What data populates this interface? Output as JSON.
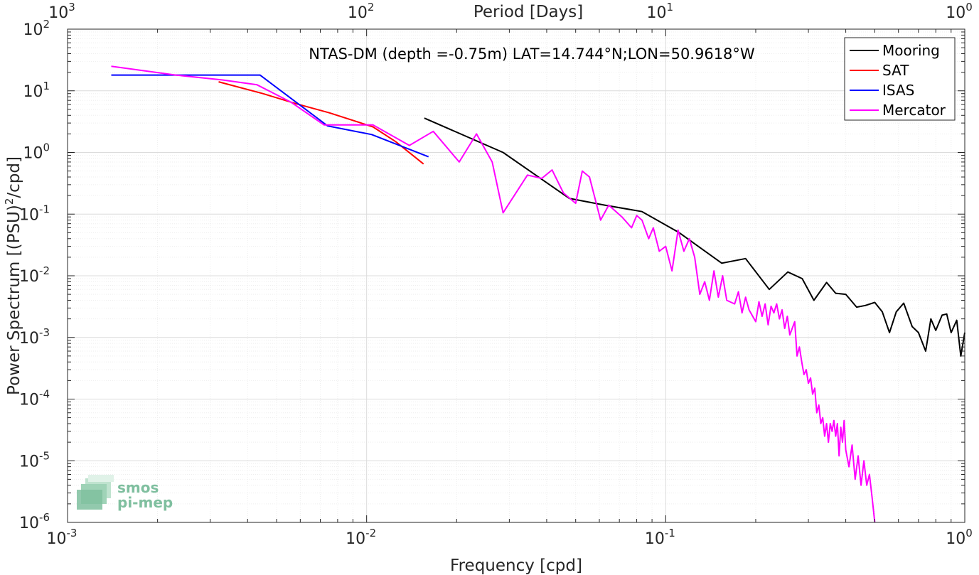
{
  "chart_data": {
    "type": "line",
    "title": "NTAS-DM (depth =-0.75m) LAT=14.744°N;LON=50.9618°W",
    "xlabel": "Frequency [cpd]",
    "ylabel": "Power Spectrum [(PSU)",
    "ylabel_sup": "2",
    "ylabel_tail": "/cpd]",
    "x2label": "Period [Days]",
    "xscale": "log",
    "yscale": "log",
    "xlim": [
      0.001,
      1
    ],
    "ylim": [
      1e-06,
      100
    ],
    "grid": true,
    "legend_position": "top-right",
    "x_ticks": [
      {
        "value": 0.001,
        "base": "10",
        "exp": "-3"
      },
      {
        "value": 0.01,
        "base": "10",
        "exp": "-2"
      },
      {
        "value": 0.1,
        "base": "10",
        "exp": "-1"
      },
      {
        "value": 1,
        "base": "10",
        "exp": "0"
      }
    ],
    "x2_ticks": [
      {
        "value": 0.001,
        "base": "10",
        "exp": "3"
      },
      {
        "value": 0.01,
        "base": "10",
        "exp": "2"
      },
      {
        "value": 0.1,
        "base": "10",
        "exp": "1"
      },
      {
        "value": 1,
        "base": "10",
        "exp": "0"
      }
    ],
    "y_ticks": [
      {
        "value": 100,
        "base": "10",
        "exp": "2"
      },
      {
        "value": 10,
        "base": "10",
        "exp": "1"
      },
      {
        "value": 1,
        "base": "10",
        "exp": "0"
      },
      {
        "value": 0.1,
        "base": "10",
        "exp": "-1"
      },
      {
        "value": 0.01,
        "base": "10",
        "exp": "-2"
      },
      {
        "value": 0.001,
        "base": "10",
        "exp": "-3"
      },
      {
        "value": 0.0001,
        "base": "10",
        "exp": "-4"
      },
      {
        "value": 1e-05,
        "base": "10",
        "exp": "-5"
      },
      {
        "value": 1e-06,
        "base": "10",
        "exp": "-6"
      }
    ],
    "series": [
      {
        "name": "Mooring",
        "color": "#000000",
        "points": [
          [
            0.0156,
            3.6
          ],
          [
            0.0286,
            1.0
          ],
          [
            0.0476,
            0.18
          ],
          [
            0.0625,
            0.14
          ],
          [
            0.0833,
            0.11
          ],
          [
            0.111,
            0.05
          ],
          [
            0.154,
            0.016
          ],
          [
            0.185,
            0.019
          ],
          [
            0.222,
            0.006
          ],
          [
            0.256,
            0.0115
          ],
          [
            0.286,
            0.009
          ],
          [
            0.313,
            0.004
          ],
          [
            0.345,
            0.0078
          ],
          [
            0.37,
            0.0052
          ],
          [
            0.4,
            0.005
          ],
          [
            0.435,
            0.0031
          ],
          [
            0.465,
            0.0033
          ],
          [
            0.5,
            0.0037
          ],
          [
            0.53,
            0.0026
          ],
          [
            0.56,
            0.0012
          ],
          [
            0.59,
            0.0026
          ],
          [
            0.625,
            0.0036
          ],
          [
            0.667,
            0.0015
          ],
          [
            0.7,
            0.0012
          ],
          [
            0.74,
            0.0006
          ],
          [
            0.77,
            0.002
          ],
          [
            0.8,
            0.0013
          ],
          [
            0.84,
            0.0023
          ],
          [
            0.87,
            0.0024
          ],
          [
            0.9,
            0.0012
          ],
          [
            0.94,
            0.0019
          ],
          [
            0.97,
            0.0005
          ],
          [
            1.0,
            0.0012
          ]
        ]
      },
      {
        "name": "SAT",
        "color": "#ff0000",
        "points": [
          [
            0.0032,
            14
          ],
          [
            0.0045,
            9
          ],
          [
            0.0058,
            6.2
          ],
          [
            0.0075,
            4.4
          ],
          [
            0.0105,
            2.6
          ],
          [
            0.0125,
            1.5
          ],
          [
            0.0155,
            0.65
          ]
        ]
      },
      {
        "name": "ISAS",
        "color": "#0000ff",
        "points": [
          [
            0.0014,
            18
          ],
          [
            0.0044,
            18
          ],
          [
            0.0074,
            2.7
          ],
          [
            0.0104,
            1.95
          ],
          [
            0.0161,
            0.85
          ]
        ]
      },
      {
        "name": "Mercator",
        "color": "#ff00ff",
        "points": [
          [
            0.0014,
            25
          ],
          [
            0.0023,
            18
          ],
          [
            0.0033,
            15
          ],
          [
            0.0043,
            12.5
          ],
          [
            0.0056,
            6.5
          ],
          [
            0.0072,
            2.8
          ],
          [
            0.0083,
            2.8
          ],
          [
            0.0105,
            2.8
          ],
          [
            0.0139,
            1.3
          ],
          [
            0.0167,
            2.2
          ],
          [
            0.0204,
            0.7
          ],
          [
            0.0233,
            2.0
          ],
          [
            0.0263,
            0.7
          ],
          [
            0.0286,
            0.105
          ],
          [
            0.0345,
            0.43
          ],
          [
            0.0385,
            0.38
          ],
          [
            0.0417,
            0.52
          ],
          [
            0.0455,
            0.22
          ],
          [
            0.05,
            0.15
          ],
          [
            0.0526,
            0.5
          ],
          [
            0.0556,
            0.4
          ],
          [
            0.0606,
            0.08
          ],
          [
            0.0645,
            0.14
          ],
          [
            0.0714,
            0.09
          ],
          [
            0.0769,
            0.06
          ],
          [
            0.08,
            0.095
          ],
          [
            0.0833,
            0.08
          ],
          [
            0.0877,
            0.04
          ],
          [
            0.0909,
            0.06
          ],
          [
            0.0952,
            0.025
          ],
          [
            0.1,
            0.03
          ],
          [
            0.105,
            0.012
          ],
          [
            0.11,
            0.055
          ],
          [
            0.115,
            0.025
          ],
          [
            0.12,
            0.04
          ],
          [
            0.125,
            0.02
          ],
          [
            0.13,
            0.005
          ],
          [
            0.135,
            0.008
          ],
          [
            0.14,
            0.004
          ],
          [
            0.145,
            0.012
          ],
          [
            0.15,
            0.0045
          ],
          [
            0.155,
            0.01
          ],
          [
            0.16,
            0.004
          ],
          [
            0.17,
            0.0035
          ],
          [
            0.175,
            0.0055
          ],
          [
            0.18,
            0.0025
          ],
          [
            0.185,
            0.0045
          ],
          [
            0.19,
            0.0028
          ],
          [
            0.2,
            0.0018
          ],
          [
            0.205,
            0.0038
          ],
          [
            0.21,
            0.0022
          ],
          [
            0.215,
            0.0035
          ],
          [
            0.22,
            0.0016
          ],
          [
            0.225,
            0.0032
          ],
          [
            0.23,
            0.0025
          ],
          [
            0.235,
            0.0035
          ],
          [
            0.24,
            0.002
          ],
          [
            0.245,
            0.0028
          ],
          [
            0.25,
            0.0014
          ],
          [
            0.255,
            0.0022
          ],
          [
            0.26,
            0.0011
          ],
          [
            0.27,
            0.0018
          ],
          [
            0.275,
            0.0005
          ],
          [
            0.28,
            0.0007
          ],
          [
            0.285,
            0.0004
          ],
          [
            0.29,
            0.00025
          ],
          [
            0.295,
            0.0003
          ],
          [
            0.3,
            0.00018
          ],
          [
            0.305,
            0.00022
          ],
          [
            0.31,
            0.00012
          ],
          [
            0.315,
            0.00015
          ],
          [
            0.32,
            6e-05
          ],
          [
            0.325,
            8e-05
          ],
          [
            0.33,
            4e-05
          ],
          [
            0.335,
            5e-05
          ],
          [
            0.34,
            2.5e-05
          ],
          [
            0.345,
            4e-05
          ],
          [
            0.35,
            2e-05
          ],
          [
            0.355,
            4e-05
          ],
          [
            0.36,
            3e-05
          ],
          [
            0.365,
            4.5e-05
          ],
          [
            0.37,
            2.5e-05
          ],
          [
            0.375,
            4e-05
          ],
          [
            0.38,
            1.2e-05
          ],
          [
            0.385,
            3.5e-05
          ],
          [
            0.39,
            2e-05
          ],
          [
            0.395,
            4.5e-05
          ],
          [
            0.4,
            1.5e-05
          ],
          [
            0.41,
            8e-06
          ],
          [
            0.42,
            1.8e-05
          ],
          [
            0.43,
            5e-06
          ],
          [
            0.44,
            1.2e-05
          ],
          [
            0.45,
            4e-06
          ],
          [
            0.46,
            1e-05
          ],
          [
            0.47,
            4e-06
          ],
          [
            0.48,
            6e-06
          ],
          [
            0.49,
            2.5e-06
          ],
          [
            0.5,
            1e-06
          ]
        ]
      }
    ]
  }
}
